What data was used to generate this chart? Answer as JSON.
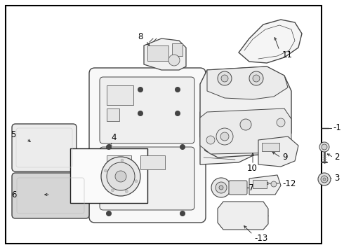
{
  "bg_color": "#ffffff",
  "border_color": "#000000",
  "line_color": "#444444",
  "text_color": "#000000",
  "fig_width": 4.9,
  "fig_height": 3.6,
  "dpi": 100
}
